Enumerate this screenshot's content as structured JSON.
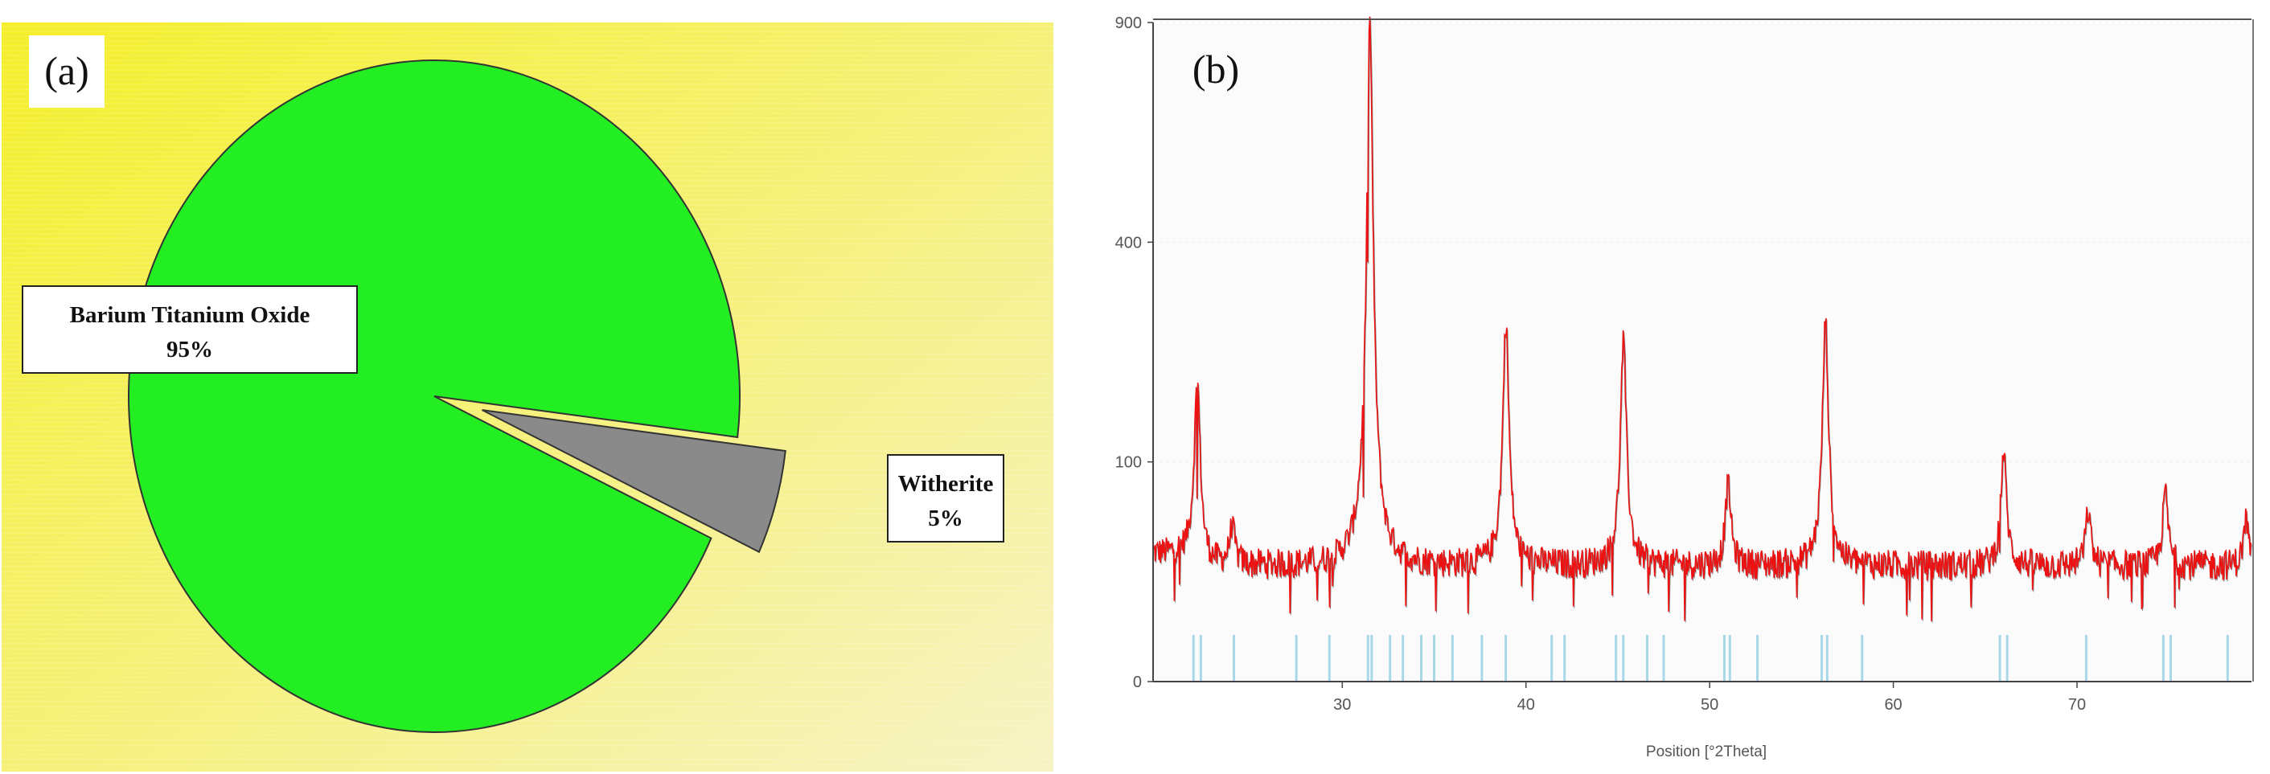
{
  "chart_data": [
    {
      "type": "pie",
      "panel_label": "(a)",
      "categories": [
        "Barium Titanium Oxide",
        "Witherite"
      ],
      "values": [
        95,
        5
      ],
      "value_labels": [
        "95%",
        "5%"
      ],
      "exploded": [
        false,
        true
      ],
      "colors": [
        "#22ee22",
        "#8a8a8a"
      ],
      "background": [
        "#f4ef2a",
        "#f7f2c4"
      ],
      "legend": "labels beside slices"
    },
    {
      "type": "line",
      "panel_label": "(b)",
      "xlabel": "Position [°2Theta]",
      "ylabel": "",
      "xlim": [
        19.7,
        79.5
      ],
      "ylim": [
        0,
        900
      ],
      "y_scale": "sqrt",
      "xticks": [
        30,
        40,
        50,
        60,
        70
      ],
      "yticks": [
        0,
        100,
        400,
        900
      ],
      "baseline": 28,
      "line_color": "#ee1111",
      "stick_color": "#a8d8e8",
      "peaks": [
        {
          "x": 22.1,
          "y": 190
        },
        {
          "x": 24.0,
          "y": 50
        },
        {
          "x": 31.5,
          "y": 900
        },
        {
          "x": 38.9,
          "y": 270
        },
        {
          "x": 45.3,
          "y": 240
        },
        {
          "x": 51.0,
          "y": 82
        },
        {
          "x": 56.3,
          "y": 270
        },
        {
          "x": 66.0,
          "y": 110
        },
        {
          "x": 70.6,
          "y": 60
        },
        {
          "x": 74.8,
          "y": 75
        },
        {
          "x": 79.2,
          "y": 55
        }
      ],
      "reference_lines": [
        21.9,
        22.3,
        24.1,
        27.5,
        29.3,
        31.4,
        31.6,
        32.6,
        33.3,
        34.3,
        35.0,
        36.0,
        37.6,
        38.9,
        41.4,
        42.1,
        44.9,
        45.3,
        46.6,
        47.5,
        50.8,
        51.1,
        52.6,
        56.1,
        56.4,
        58.3,
        65.8,
        66.2,
        70.5,
        74.7,
        75.1,
        78.2
      ]
    }
  ]
}
